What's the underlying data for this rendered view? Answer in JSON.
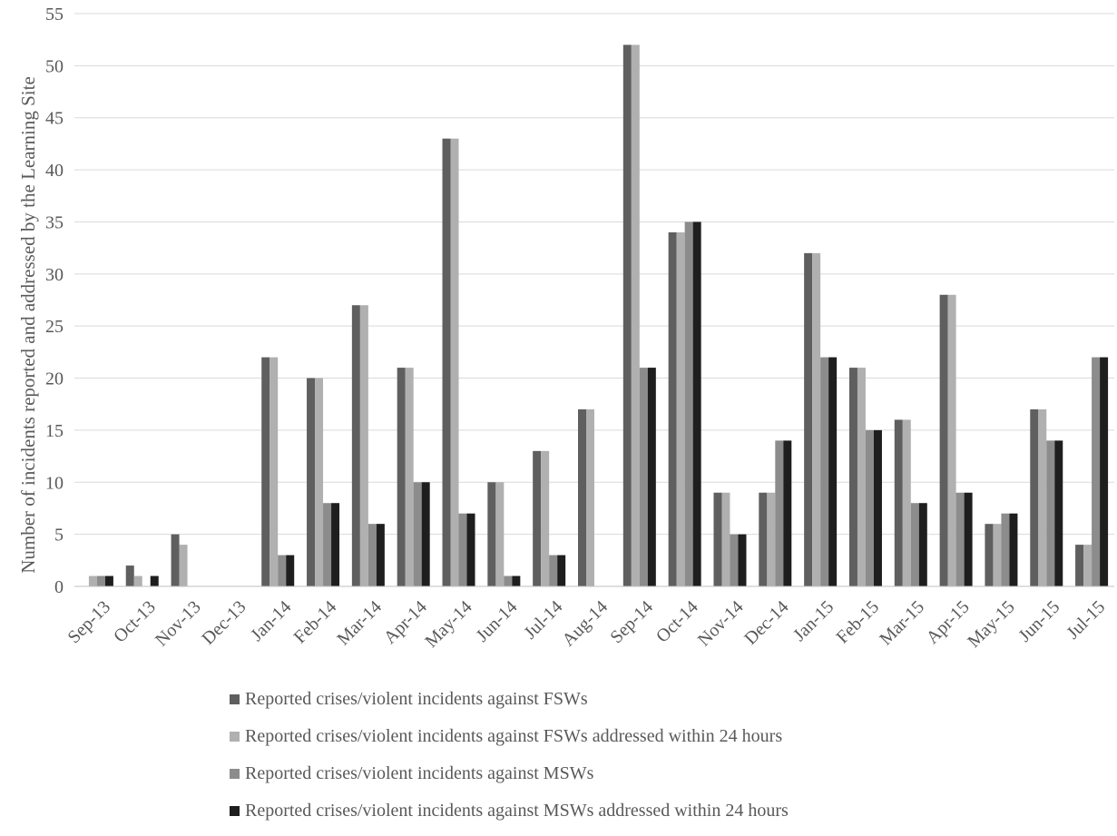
{
  "chart_data": {
    "type": "bar",
    "ylabel": "Number of incidents reported and addressed by the Learning Site",
    "ylim": [
      0,
      55
    ],
    "yticks": [
      0,
      5,
      10,
      15,
      20,
      25,
      30,
      35,
      40,
      45,
      50,
      55
    ],
    "grid": true,
    "legend_position": "bottom",
    "categories": [
      "Sep-13",
      "Oct-13",
      "Nov-13",
      "Dec-13",
      "Jan-14",
      "Feb-14",
      "Mar-14",
      "Apr-14",
      "May-14",
      "Jun-14",
      "Jul-14",
      "Aug-14",
      "Sep-14",
      "Oct-14",
      "Nov-14",
      "Dec-14",
      "Jan-15",
      "Feb-15",
      "Mar-15",
      "Apr-15",
      "May-15",
      "Jun-15",
      "Jul-15"
    ],
    "series": [
      {
        "name": "Reported crises/violent incidents against FSWs",
        "color": "#5f5f5f",
        "values": [
          0,
          2,
          5,
          0,
          22,
          20,
          27,
          21,
          43,
          10,
          13,
          17,
          52,
          34,
          9,
          9,
          32,
          21,
          16,
          28,
          6,
          17,
          4
        ]
      },
      {
        "name": "Reported crises/violent incidents against FSWs addressed within 24 hours",
        "color": "#b0b0b0",
        "values": [
          1,
          1,
          4,
          0,
          22,
          20,
          27,
          21,
          43,
          10,
          13,
          17,
          52,
          34,
          9,
          9,
          32,
          21,
          16,
          28,
          6,
          17,
          4
        ]
      },
      {
        "name": "Reported crises/violent incidents against MSWs",
        "color": "#8c8c8c",
        "values": [
          1,
          0,
          0,
          0,
          3,
          8,
          6,
          10,
          7,
          1,
          3,
          0,
          21,
          35,
          5,
          14,
          22,
          15,
          8,
          9,
          7,
          14,
          22
        ]
      },
      {
        "name": "Reported crises/violent incidents against MSWs addressed within 24 hours",
        "color": "#1e1e1e",
        "values": [
          1,
          1,
          0,
          0,
          3,
          8,
          6,
          10,
          7,
          1,
          3,
          0,
          21,
          35,
          5,
          14,
          22,
          15,
          8,
          9,
          7,
          14,
          22
        ]
      }
    ]
  }
}
